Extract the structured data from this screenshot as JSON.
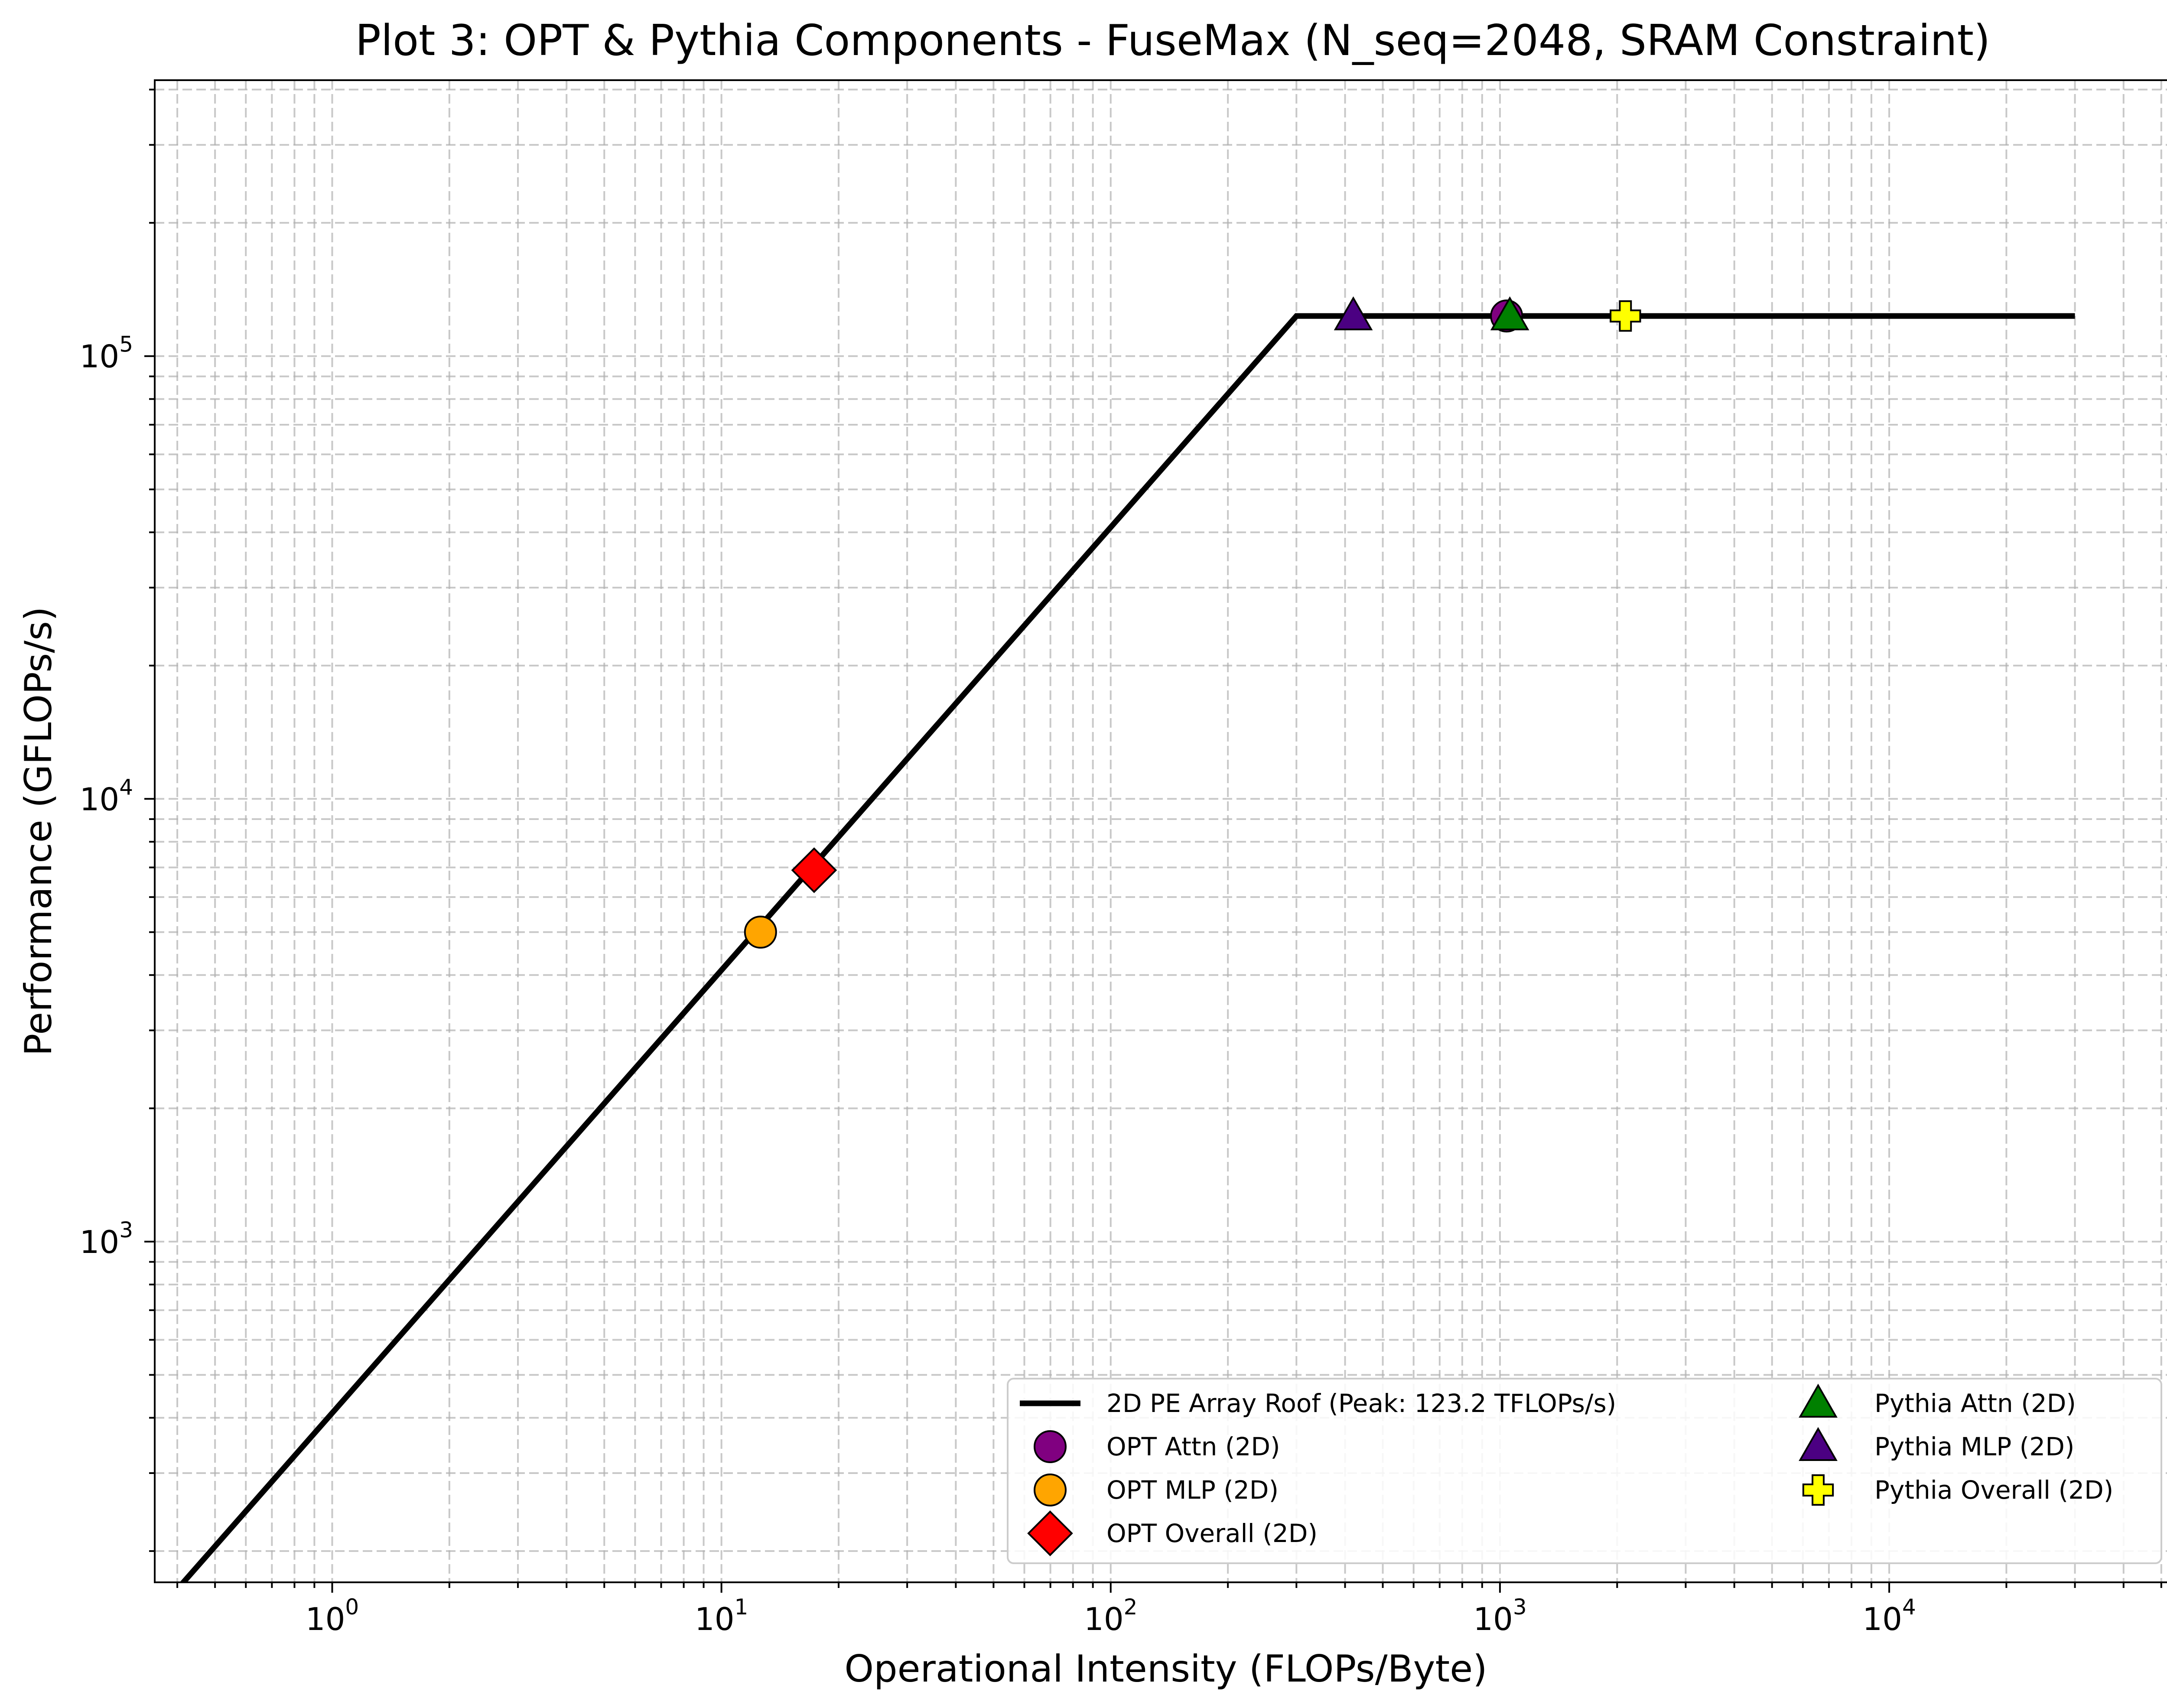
{
  "chart_data": {
    "type": "scatter",
    "title": "Plot 3: OPT & Pythia Components - FuseMax (N_seq=2048, SRAM Constraint)",
    "xlabel": "Operational Intensity (FLOPs/Byte)",
    "ylabel": "Performance (GFLOPs/s)",
    "xscale": "log",
    "yscale": "log",
    "xlim": [
      0.35,
      55000
    ],
    "ylim": [
      170,
      420000
    ],
    "grid": true,
    "legend_position": "lower-right",
    "x_ticks": [
      {
        "base": "10",
        "exp": "0",
        "value": 1
      },
      {
        "base": "10",
        "exp": "1",
        "value": 10
      },
      {
        "base": "10",
        "exp": "2",
        "value": 100
      },
      {
        "base": "10",
        "exp": "3",
        "value": 1000
      },
      {
        "base": "10",
        "exp": "4",
        "value": 10000
      }
    ],
    "y_ticks": [
      {
        "base": "10",
        "exp": "3",
        "value": 1000
      },
      {
        "base": "10",
        "exp": "4",
        "value": 10000
      },
      {
        "base": "10",
        "exp": "5",
        "value": 100000
      }
    ],
    "roofline": {
      "name": "2D PE Array Roof (Peak: 123.2 TFLOPs/s)",
      "points": [
        [
          0.4,
          164
        ],
        [
          300,
          123200
        ],
        [
          30000,
          123200
        ]
      ],
      "color": "#000000"
    },
    "series": [
      {
        "name": "OPT Attn (2D)",
        "marker": "circle",
        "color": "#800080",
        "x": 1040,
        "y": 123200
      },
      {
        "name": "OPT MLP (2D)",
        "marker": "circle",
        "color": "#FFA500",
        "x": 12.6,
        "y": 5000
      },
      {
        "name": "OPT Overall (2D)",
        "marker": "diamond",
        "color": "#FF0000",
        "x": 17.3,
        "y": 6900
      },
      {
        "name": "Pythia Attn (2D)",
        "marker": "triangle",
        "color": "#008000",
        "x": 1060,
        "y": 123200
      },
      {
        "name": "Pythia MLP (2D)",
        "marker": "triangle",
        "color": "#4B0082",
        "x": 420,
        "y": 123200
      },
      {
        "name": "Pythia Overall (2D)",
        "marker": "plus",
        "color": "#FFFF00",
        "x": 2100,
        "y": 123200
      }
    ]
  }
}
